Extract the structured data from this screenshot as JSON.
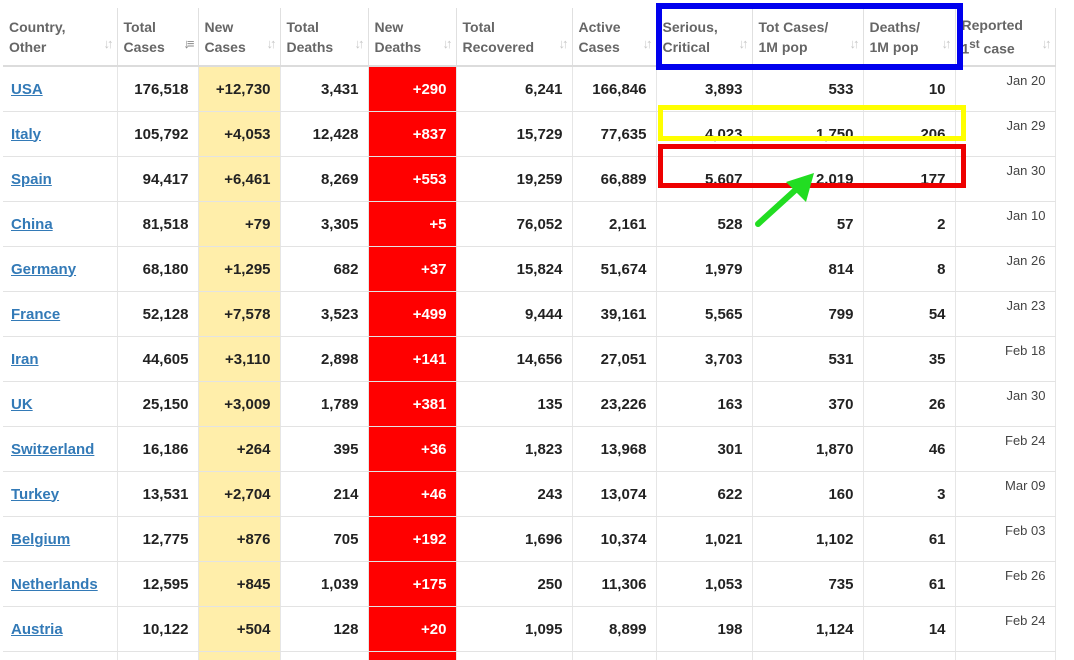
{
  "table": {
    "headers": [
      {
        "line1": "Country,",
        "line2": "Other",
        "sort_icon": "sort-icon"
      },
      {
        "line1": "Total",
        "line2": "Cases",
        "sort_icon": "sort-desc-icon"
      },
      {
        "line1": "New",
        "line2": "Cases",
        "sort_icon": "sort-icon"
      },
      {
        "line1": "Total",
        "line2": "Deaths",
        "sort_icon": "sort-icon"
      },
      {
        "line1": "New",
        "line2": "Deaths",
        "sort_icon": "sort-icon"
      },
      {
        "line1": "Total",
        "line2": "Recovered",
        "sort_icon": "sort-icon"
      },
      {
        "line1": "Active",
        "line2": "Cases",
        "sort_icon": "sort-icon"
      },
      {
        "line1": "Serious,",
        "line2": "Critical",
        "sort_icon": "sort-icon"
      },
      {
        "line1": "Tot Cases/",
        "line2": "1M pop",
        "sort_icon": "sort-icon"
      },
      {
        "line1": "Deaths/",
        "line2": "1M pop",
        "sort_icon": "sort-icon"
      },
      {
        "line1": "Reported",
        "line2_pre": "1",
        "line2_sup": "st",
        "line2_post": " case",
        "sort_icon": "sort-icon"
      }
    ],
    "rows": [
      {
        "country": "USA",
        "total_cases": "176,518",
        "new_cases": "+12,730",
        "total_deaths": "3,431",
        "new_deaths": "+290",
        "total_recovered": "6,241",
        "active_cases": "166,846",
        "serious_critical": "3,893",
        "tot_cases_1m": "533",
        "deaths_1m": "10",
        "reported": "Jan 20"
      },
      {
        "country": "Italy",
        "total_cases": "105,792",
        "new_cases": "+4,053",
        "total_deaths": "12,428",
        "new_deaths": "+837",
        "total_recovered": "15,729",
        "active_cases": "77,635",
        "serious_critical": "4,023",
        "tot_cases_1m": "1,750",
        "deaths_1m": "206",
        "reported": "Jan 29"
      },
      {
        "country": "Spain",
        "total_cases": "94,417",
        "new_cases": "+6,461",
        "total_deaths": "8,269",
        "new_deaths": "+553",
        "total_recovered": "19,259",
        "active_cases": "66,889",
        "serious_critical": "5,607",
        "tot_cases_1m": "2,019",
        "deaths_1m": "177",
        "reported": "Jan 30"
      },
      {
        "country": "China",
        "total_cases": "81,518",
        "new_cases": "+79",
        "total_deaths": "3,305",
        "new_deaths": "+5",
        "total_recovered": "76,052",
        "active_cases": "2,161",
        "serious_critical": "528",
        "tot_cases_1m": "57",
        "deaths_1m": "2",
        "reported": "Jan 10"
      },
      {
        "country": "Germany",
        "total_cases": "68,180",
        "new_cases": "+1,295",
        "total_deaths": "682",
        "new_deaths": "+37",
        "total_recovered": "15,824",
        "active_cases": "51,674",
        "serious_critical": "1,979",
        "tot_cases_1m": "814",
        "deaths_1m": "8",
        "reported": "Jan 26"
      },
      {
        "country": "France",
        "total_cases": "52,128",
        "new_cases": "+7,578",
        "total_deaths": "3,523",
        "new_deaths": "+499",
        "total_recovered": "9,444",
        "active_cases": "39,161",
        "serious_critical": "5,565",
        "tot_cases_1m": "799",
        "deaths_1m": "54",
        "reported": "Jan 23"
      },
      {
        "country": "Iran",
        "total_cases": "44,605",
        "new_cases": "+3,110",
        "total_deaths": "2,898",
        "new_deaths": "+141",
        "total_recovered": "14,656",
        "active_cases": "27,051",
        "serious_critical": "3,703",
        "tot_cases_1m": "531",
        "deaths_1m": "35",
        "reported": "Feb 18"
      },
      {
        "country": "UK",
        "total_cases": "25,150",
        "new_cases": "+3,009",
        "total_deaths": "1,789",
        "new_deaths": "+381",
        "total_recovered": "135",
        "active_cases": "23,226",
        "serious_critical": "163",
        "tot_cases_1m": "370",
        "deaths_1m": "26",
        "reported": "Jan 30"
      },
      {
        "country": "Switzerland",
        "total_cases": "16,186",
        "new_cases": "+264",
        "total_deaths": "395",
        "new_deaths": "+36",
        "total_recovered": "1,823",
        "active_cases": "13,968",
        "serious_critical": "301",
        "tot_cases_1m": "1,870",
        "deaths_1m": "46",
        "reported": "Feb 24"
      },
      {
        "country": "Turkey",
        "total_cases": "13,531",
        "new_cases": "+2,704",
        "total_deaths": "214",
        "new_deaths": "+46",
        "total_recovered": "243",
        "active_cases": "13,074",
        "serious_critical": "622",
        "tot_cases_1m": "160",
        "deaths_1m": "3",
        "reported": "Mar 09"
      },
      {
        "country": "Belgium",
        "total_cases": "12,775",
        "new_cases": "+876",
        "total_deaths": "705",
        "new_deaths": "+192",
        "total_recovered": "1,696",
        "active_cases": "10,374",
        "serious_critical": "1,021",
        "tot_cases_1m": "1,102",
        "deaths_1m": "61",
        "reported": "Feb 03"
      },
      {
        "country": "Netherlands",
        "total_cases": "12,595",
        "new_cases": "+845",
        "total_deaths": "1,039",
        "new_deaths": "+175",
        "total_recovered": "250",
        "active_cases": "11,306",
        "serious_critical": "1,053",
        "tot_cases_1m": "735",
        "deaths_1m": "61",
        "reported": "Feb 26"
      },
      {
        "country": "Austria",
        "total_cases": "10,122",
        "new_cases": "+504",
        "total_deaths": "128",
        "new_deaths": "+20",
        "total_recovered": "1,095",
        "active_cases": "8,899",
        "serious_critical": "198",
        "tot_cases_1m": "1,124",
        "deaths_1m": "14",
        "reported": "Feb 24"
      }
    ]
  },
  "annotations": {
    "blue_box_color": "#0000ee",
    "yellow_box_color": "#ffff00",
    "red_box_color": "#ee0000",
    "arrow_color": "#22dd22"
  },
  "colors": {
    "new_cases_bg": "#ffeeaa",
    "new_deaths_bg": "#ff0000",
    "link": "#337ab7"
  }
}
